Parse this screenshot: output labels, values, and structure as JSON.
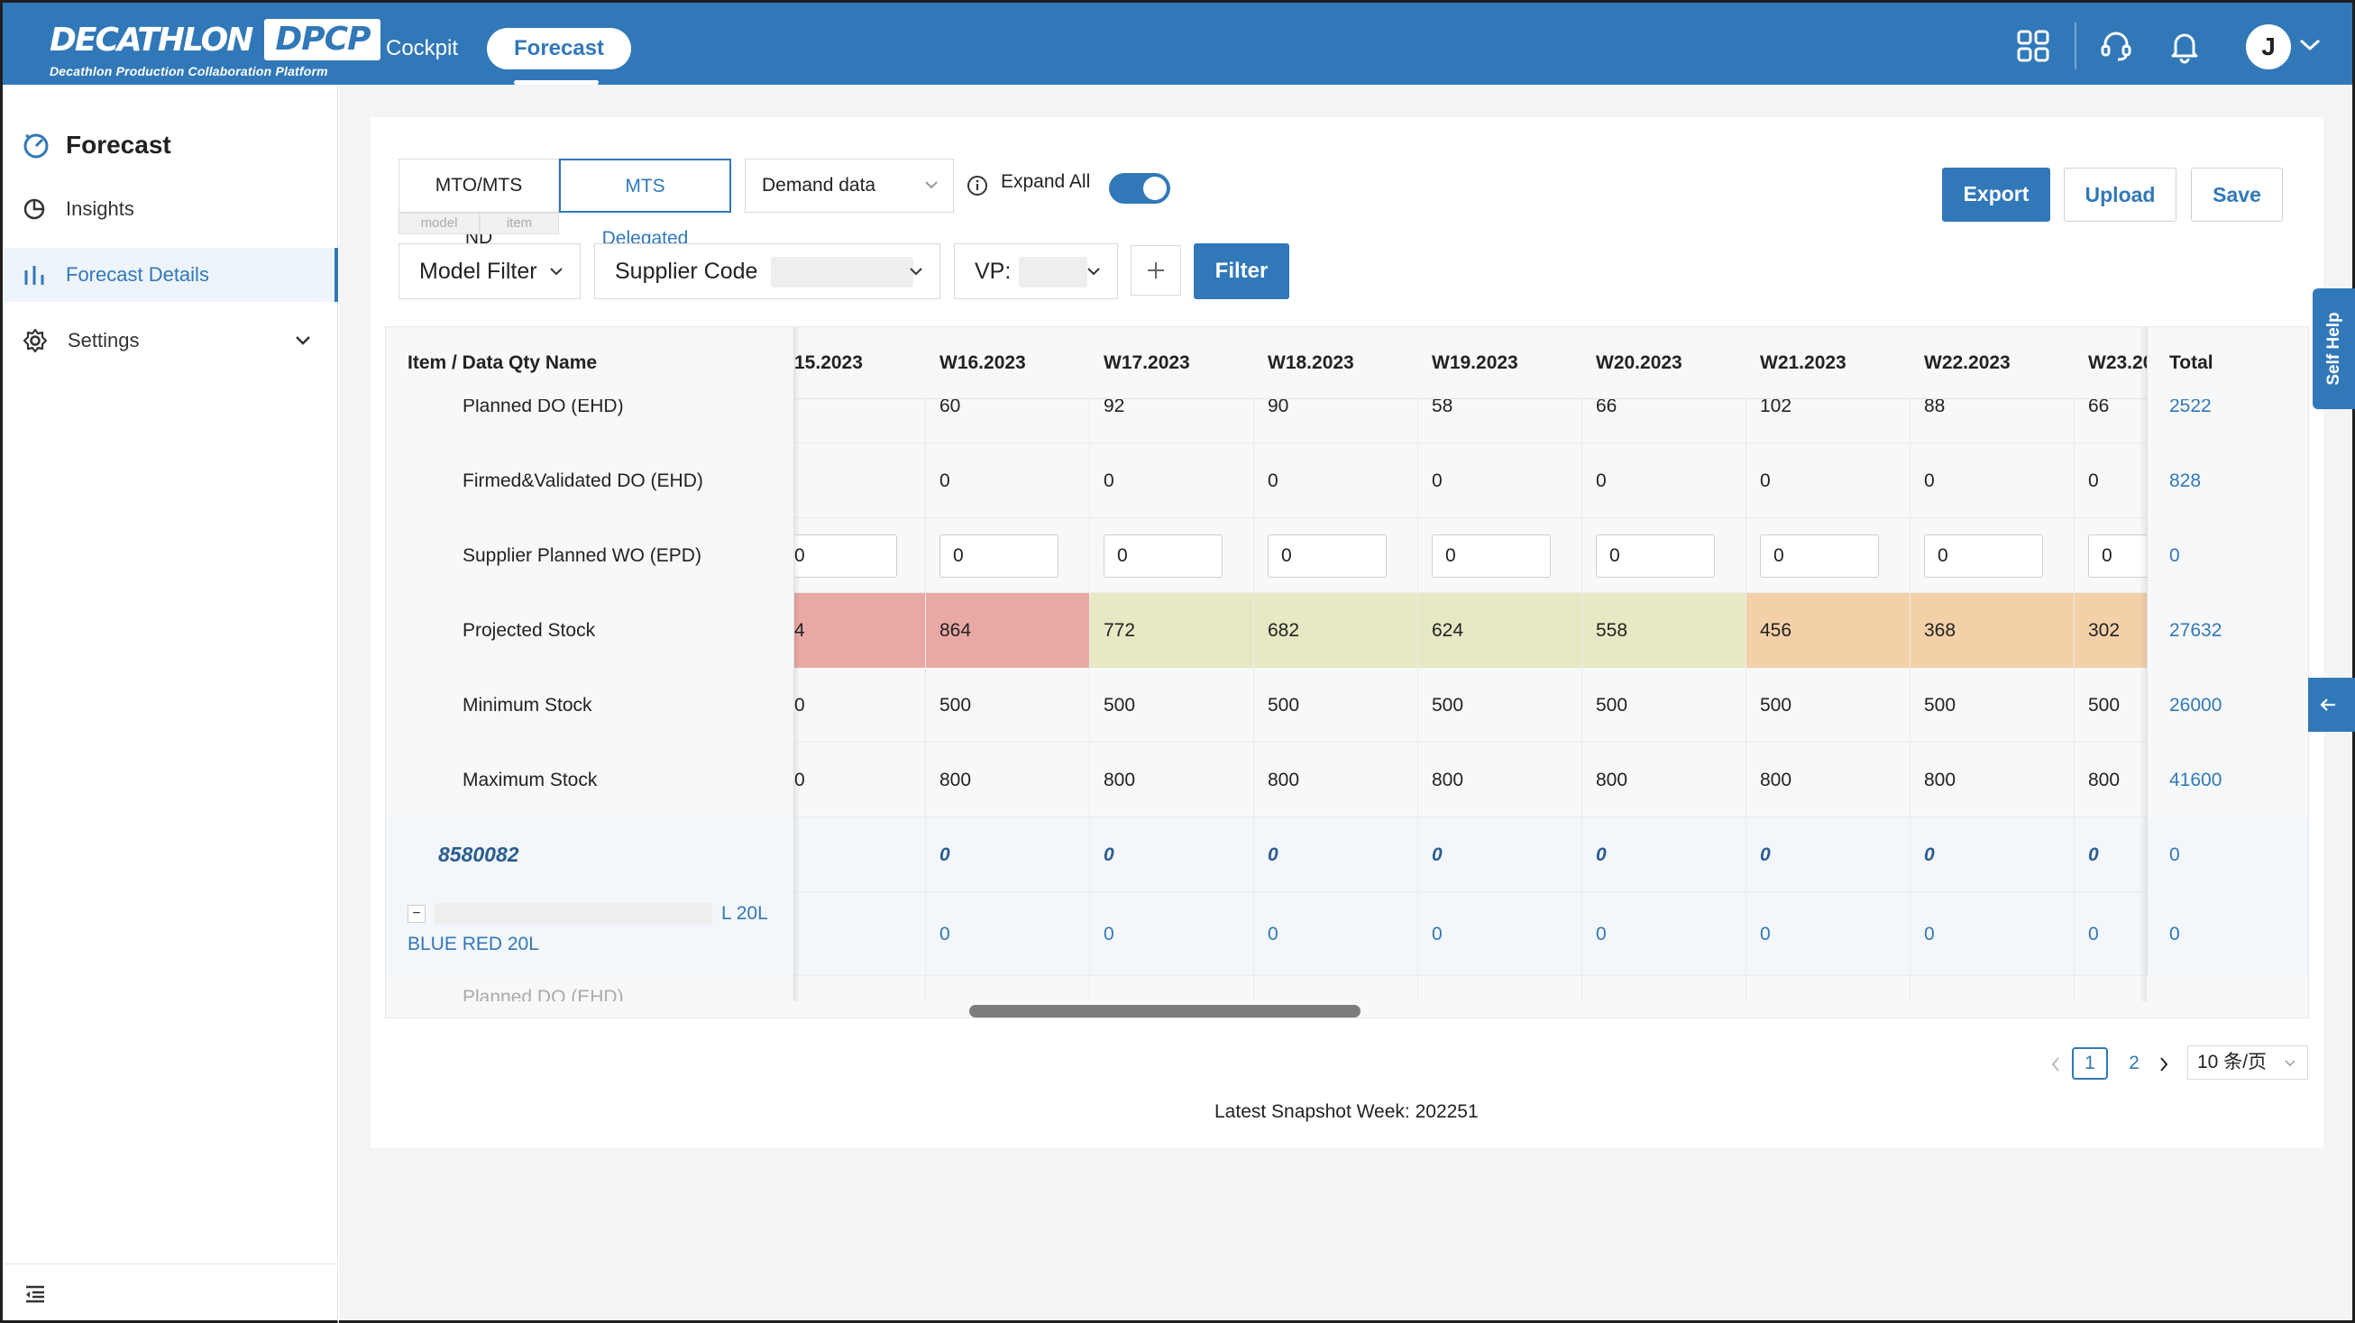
{
  "header": {
    "logo_main": "DECATHLON",
    "logo_box": "DPCP",
    "logo_sub": "Decathlon Production Collaboration Platform",
    "tabs": [
      {
        "label": "Cockpit"
      },
      {
        "label": "Forecast"
      }
    ],
    "avatar_letter": "J"
  },
  "sidebar": {
    "title": "Forecast",
    "items": [
      {
        "label": "Insights",
        "icon": "pie-chart-icon"
      },
      {
        "label": "Forecast Details",
        "icon": "bar-chart-icon"
      },
      {
        "label": "Settings",
        "icon": "gear-icon"
      }
    ]
  },
  "toolbar": {
    "seg_mto": "MTO/MTS ND",
    "seg_mts": "MTS Delegated",
    "sub_model": "model",
    "sub_item": "item",
    "demand_select": "Demand data",
    "expand_all": "Expand All",
    "export": "Export",
    "upload": "Upload",
    "save": "Save",
    "model_filter": "Model Filter",
    "supplier_code": "Supplier Code",
    "vp": "VP:",
    "filter": "Filter"
  },
  "table": {
    "header_name": "Item / Data Qty Name",
    "weeks": [
      "15.2023",
      "W16.2023",
      "W17.2023",
      "W18.2023",
      "W19.2023",
      "W20.2023",
      "W21.2023",
      "W22.2023",
      "W23.20"
    ],
    "header_total": "Total",
    "rows": [
      {
        "name": "Planned DO (EHD)",
        "values": [
          "",
          "60",
          "92",
          "90",
          "58",
          "66",
          "102",
          "88",
          "66"
        ],
        "total": "2522"
      },
      {
        "name": "Firmed&Validated DO (EHD)",
        "values": [
          "",
          "0",
          "0",
          "0",
          "0",
          "0",
          "0",
          "0",
          "0"
        ],
        "total": "828"
      },
      {
        "name": "Supplier Planned WO (EPD)",
        "values": [
          "0",
          "0",
          "0",
          "0",
          "0",
          "0",
          "0",
          "0",
          "0"
        ],
        "total": "0"
      },
      {
        "name": "Projected Stock",
        "values": [
          "4",
          "864",
          "772",
          "682",
          "624",
          "558",
          "456",
          "368",
          "302"
        ],
        "total": "27632"
      },
      {
        "name": "Minimum Stock",
        "values": [
          "0",
          "500",
          "500",
          "500",
          "500",
          "500",
          "500",
          "500",
          "500"
        ],
        "total": "26000"
      },
      {
        "name": "Maximum Stock",
        "values": [
          "0",
          "800",
          "800",
          "800",
          "800",
          "800",
          "800",
          "800",
          "800"
        ],
        "total": "41600"
      },
      {
        "name": "8580082",
        "values": [
          "",
          "0",
          "0",
          "0",
          "0",
          "0",
          "0",
          "0",
          "0"
        ],
        "total": "0"
      },
      {
        "name_suffix": "L 20L",
        "name_line2": "BLUE RED 20L",
        "collapse": "−",
        "values": [
          "",
          "0",
          "0",
          "0",
          "0",
          "0",
          "0",
          "0",
          "0"
        ],
        "total": "0"
      },
      {
        "name": "Planned DO (EHD)"
      }
    ],
    "stock_colors": [
      "#e8a9a5",
      "#e8a9a5",
      "#e6e9c3",
      "#e6e9c3",
      "#e6e9c3",
      "#e6e9c3",
      "#f4d0a8",
      "#f4d0a8",
      "#f4d0a8"
    ]
  },
  "pager": {
    "prev": "‹",
    "page1": "1",
    "page2": "2",
    "next": "›",
    "size": "10 条/页"
  },
  "snapshot": "Latest Snapshot Week: 202251",
  "self_help": "Self Help",
  "colors": {
    "accent": "#3178b8"
  }
}
